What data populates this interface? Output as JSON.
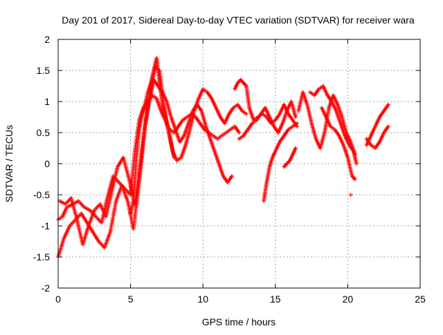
{
  "chart_data": {
    "type": "scatter",
    "title": "Day 201 of 2017, Sidereal Day-to-day VTEC variation (SDTVAR) for receiver wara",
    "xlabel": "GPS time / hours",
    "ylabel": "SDTVAR / TECUs",
    "xlim": [
      0,
      25
    ],
    "ylim": [
      -2,
      2
    ],
    "xticks": [
      0,
      5,
      10,
      15,
      20,
      25
    ],
    "yticks": [
      -2,
      -1.5,
      -1,
      -0.5,
      0,
      0.5,
      1,
      1.5,
      2
    ],
    "xtick_labels": [
      "0",
      "5",
      "10",
      "15",
      "20",
      "25"
    ],
    "ytick_labels": [
      "-2",
      "-1.5",
      "-1",
      "-0.5",
      "0",
      "0.5",
      "1",
      "1.5",
      "2"
    ],
    "grid": true,
    "marker": "+",
    "series_color": "#ff0000",
    "series": [
      {
        "name": "SDTVAR",
        "tracks": [
          {
            "x": [
              0.0,
              0.3,
              0.6,
              1.0,
              1.4,
              1.8,
              2.2,
              2.6,
              3.0,
              3.4,
              3.8,
              4.2,
              4.6,
              5.0,
              5.3,
              5.6,
              5.9,
              6.2,
              6.5,
              6.8,
              7.1,
              7.4,
              7.7,
              8.0,
              8.3,
              8.6,
              8.9,
              9.2,
              9.5,
              9.8,
              10.1,
              10.4,
              10.7,
              11.0,
              11.3,
              11.6,
              11.9,
              12.2,
              12.5
            ],
            "y": [
              -0.9,
              -0.85,
              -0.7,
              -0.65,
              -0.6,
              -0.7,
              -0.75,
              -0.85,
              -0.95,
              -0.55,
              -0.2,
              -0.3,
              -0.4,
              -0.5,
              0.2,
              0.7,
              0.9,
              1.0,
              1.1,
              1.05,
              0.85,
              0.7,
              0.55,
              0.5,
              0.6,
              0.7,
              0.75,
              0.8,
              0.75,
              0.65,
              0.55,
              0.5,
              0.45,
              0.4,
              0.45,
              0.5,
              0.55,
              0.6,
              0.5
            ]
          },
          {
            "x": [
              0.0,
              0.4,
              0.8,
              1.2,
              1.6,
              2.0,
              2.4,
              2.8,
              3.2,
              3.6,
              4.0,
              4.4,
              4.8,
              5.2,
              5.6,
              6.0,
              6.3,
              6.6,
              6.9,
              7.2,
              7.5,
              7.8,
              8.1,
              8.4,
              8.7,
              9.0,
              9.3,
              9.6,
              9.9,
              10.2,
              10.5,
              10.8,
              11.1,
              11.4,
              11.7,
              12.0
            ],
            "y": [
              -1.5,
              -1.2,
              -1.0,
              -0.9,
              -0.8,
              -0.95,
              -1.1,
              -1.25,
              -1.35,
              -1.1,
              -0.6,
              -0.35,
              -0.6,
              -1.05,
              -0.3,
              0.6,
              1.0,
              1.35,
              1.25,
              1.15,
              1.0,
              0.75,
              0.55,
              0.35,
              0.45,
              0.65,
              0.85,
              0.95,
              0.85,
              0.6,
              0.4,
              0.2,
              0.0,
              -0.2,
              -0.3,
              -0.2
            ]
          },
          {
            "x": [
              0.1,
              0.5,
              0.9,
              1.3,
              1.7,
              2.1,
              2.5,
              2.9,
              3.3,
              3.7,
              4.1,
              4.5,
              4.9,
              5.3,
              5.7,
              6.1,
              6.4,
              6.7,
              7.0,
              7.3,
              7.6,
              7.9,
              8.2,
              8.5,
              8.8,
              9.1,
              9.4,
              9.7,
              10.0,
              10.3,
              10.6,
              10.9,
              11.2,
              11.5,
              11.8,
              12.1,
              12.4,
              12.7,
              13.0
            ],
            "y": [
              -0.6,
              -0.65,
              -0.55,
              -0.9,
              -1.3,
              -1.0,
              -0.75,
              -0.65,
              -0.85,
              -0.45,
              -0.05,
              0.1,
              -0.25,
              -0.65,
              0.05,
              0.8,
              1.2,
              1.55,
              1.5,
              0.95,
              0.55,
              0.2,
              0.05,
              0.1,
              0.3,
              0.55,
              0.85,
              1.05,
              1.2,
              1.15,
              1.05,
              0.9,
              0.75,
              0.65,
              0.8,
              0.9,
              0.95,
              0.85,
              0.8
            ]
          },
          {
            "x": [
              5.0,
              5.2,
              5.4,
              5.6,
              5.8,
              6.0,
              6.2,
              6.4,
              6.6,
              6.8,
              7.0,
              7.2,
              7.4,
              7.6,
              7.8,
              8.0
            ],
            "y": [
              -0.8,
              -0.6,
              0.1,
              0.55,
              0.8,
              0.95,
              1.15,
              1.3,
              1.5,
              1.7,
              1.3,
              0.95,
              0.75,
              0.55,
              0.35,
              0.1
            ]
          },
          {
            "x": [
              12.2,
              12.4,
              12.6,
              12.8,
              13.0,
              13.2,
              13.5,
              13.8,
              14.1,
              14.4,
              14.7,
              15.0,
              15.3,
              15.6,
              15.9,
              16.2,
              16.5
            ],
            "y": [
              1.2,
              1.3,
              1.35,
              1.3,
              1.25,
              0.9,
              0.7,
              0.75,
              0.8,
              0.75,
              0.65,
              0.7,
              0.8,
              0.95,
              0.8,
              0.7,
              0.6
            ]
          },
          {
            "x": [
              12.5,
              12.8,
              13.1,
              13.4,
              13.7,
              14.0,
              14.3,
              14.6,
              14.9,
              15.2,
              15.5,
              15.8,
              16.1,
              16.4
            ],
            "y": [
              0.4,
              0.45,
              0.55,
              0.65,
              0.7,
              0.8,
              0.9,
              0.75,
              0.6,
              0.5,
              0.65,
              0.85,
              1.0,
              0.75
            ]
          },
          {
            "x": [
              14.2,
              14.4,
              14.6,
              14.8,
              15.0,
              15.3,
              15.6,
              15.9,
              16.2,
              16.5
            ],
            "y": [
              -0.6,
              -0.3,
              -0.05,
              0.1,
              0.2,
              0.35,
              0.45,
              0.55,
              0.6,
              0.65
            ]
          },
          {
            "x": [
              15.6,
              15.8,
              16.0,
              16.2,
              16.4
            ],
            "y": [
              -0.05,
              0.0,
              0.05,
              0.15,
              0.25
            ]
          },
          {
            "x": [
              16.6,
              16.9,
              17.2,
              17.5,
              17.8,
              18.1,
              18.4,
              18.7,
              19.0,
              19.3,
              19.6,
              19.9,
              20.2,
              20.5
            ],
            "y": [
              0.85,
              1.15,
              0.95,
              0.65,
              0.4,
              0.25,
              0.5,
              0.9,
              1.1,
              0.95,
              0.75,
              0.5,
              0.35,
              0.15
            ]
          },
          {
            "x": [
              17.4,
              17.7,
              18.0,
              18.3,
              18.6,
              18.9,
              19.2,
              19.5,
              19.8,
              20.1,
              20.4,
              20.6
            ],
            "y": [
              1.15,
              1.1,
              1.2,
              1.25,
              1.1,
              1.0,
              0.85,
              0.65,
              0.45,
              0.3,
              0.2,
              0.0
            ]
          },
          {
            "x": [
              18.2,
              18.5,
              18.8,
              19.1,
              19.4,
              19.7,
              20.0,
              20.3,
              20.5
            ],
            "y": [
              0.9,
              0.75,
              0.6,
              0.55,
              0.45,
              0.3,
              0.1,
              -0.2,
              -0.25
            ]
          },
          {
            "x": [
              20.2
            ],
            "y": [
              -0.5
            ]
          },
          {
            "x": [
              21.3,
              21.6,
              21.9,
              22.2,
              22.5,
              22.8
            ],
            "y": [
              0.3,
              0.45,
              0.6,
              0.75,
              0.85,
              0.95
            ]
          },
          {
            "x": [
              21.3,
              21.6,
              21.9,
              22.2,
              22.5,
              22.8
            ],
            "y": [
              0.4,
              0.3,
              0.25,
              0.35,
              0.5,
              0.6
            ]
          }
        ]
      }
    ]
  }
}
